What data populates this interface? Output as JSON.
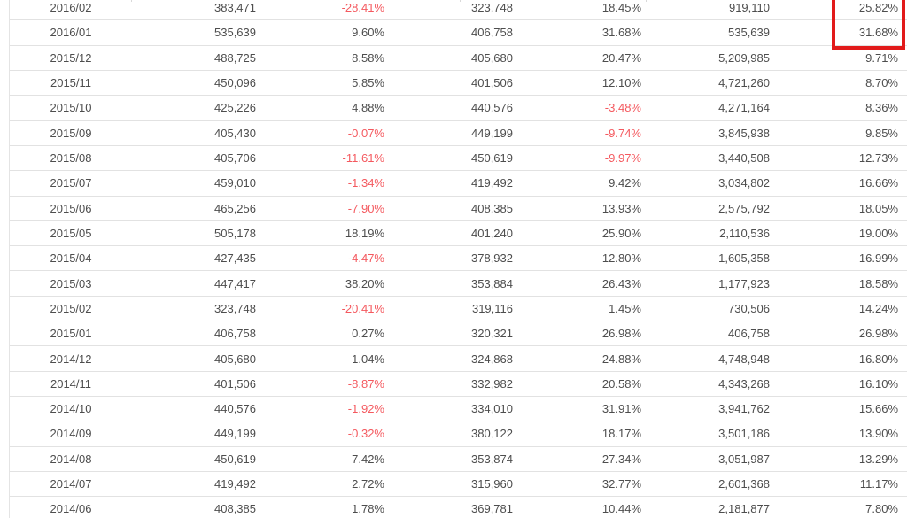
{
  "chart_data": {
    "type": "table",
    "columns_visible_headers": [],
    "rows": [
      [
        "2016/02",
        "383,471",
        "-28.41%",
        "323,748",
        "18.45%",
        "919,110",
        "25.82%"
      ],
      [
        "2016/01",
        "535,639",
        "9.60%",
        "406,758",
        "31.68%",
        "535,639",
        "31.68%"
      ],
      [
        "2015/12",
        "488,725",
        "8.58%",
        "405,680",
        "20.47%",
        "5,209,985",
        "9.71%"
      ],
      [
        "2015/11",
        "450,096",
        "5.85%",
        "401,506",
        "12.10%",
        "4,721,260",
        "8.70%"
      ],
      [
        "2015/10",
        "425,226",
        "4.88%",
        "440,576",
        "-3.48%",
        "4,271,164",
        "8.36%"
      ],
      [
        "2015/09",
        "405,430",
        "-0.07%",
        "449,199",
        "-9.74%",
        "3,845,938",
        "9.85%"
      ],
      [
        "2015/08",
        "405,706",
        "-11.61%",
        "450,619",
        "-9.97%",
        "3,440,508",
        "12.73%"
      ],
      [
        "2015/07",
        "459,010",
        "-1.34%",
        "419,492",
        "9.42%",
        "3,034,802",
        "16.66%"
      ],
      [
        "2015/06",
        "465,256",
        "-7.90%",
        "408,385",
        "13.93%",
        "2,575,792",
        "18.05%"
      ],
      [
        "2015/05",
        "505,178",
        "18.19%",
        "401,240",
        "25.90%",
        "2,110,536",
        "19.00%"
      ],
      [
        "2015/04",
        "427,435",
        "-4.47%",
        "378,932",
        "12.80%",
        "1,605,358",
        "16.99%"
      ],
      [
        "2015/03",
        "447,417",
        "38.20%",
        "353,884",
        "26.43%",
        "1,177,923",
        "18.58%"
      ],
      [
        "2015/02",
        "323,748",
        "-20.41%",
        "319,116",
        "1.45%",
        "730,506",
        "14.24%"
      ],
      [
        "2015/01",
        "406,758",
        "0.27%",
        "320,321",
        "26.98%",
        "406,758",
        "26.98%"
      ],
      [
        "2014/12",
        "405,680",
        "1.04%",
        "324,868",
        "24.88%",
        "4,748,948",
        "16.80%"
      ],
      [
        "2014/11",
        "401,506",
        "-8.87%",
        "332,982",
        "20.58%",
        "4,343,268",
        "16.10%"
      ],
      [
        "2014/10",
        "440,576",
        "-1.92%",
        "334,010",
        "31.91%",
        "3,941,762",
        "15.66%"
      ],
      [
        "2014/09",
        "449,199",
        "-0.32%",
        "380,122",
        "18.17%",
        "3,501,186",
        "13.90%"
      ],
      [
        "2014/08",
        "450,619",
        "7.42%",
        "353,874",
        "27.34%",
        "3,051,987",
        "13.29%"
      ],
      [
        "2014/07",
        "419,492",
        "2.72%",
        "315,960",
        "32.77%",
        "2,601,368",
        "11.17%"
      ],
      [
        "2014/06",
        "408,385",
        "1.78%",
        "369,781",
        "10.44%",
        "2,181,877",
        "7.80%"
      ]
    ],
    "highlight": {
      "row_indexes": [
        0,
        1
      ],
      "column_index": 6,
      "highlighted_values": [
        "25.82%",
        "31.68%"
      ],
      "color": "#e21a1a"
    },
    "colors": {
      "text": "#4d4d4d",
      "negative_value_text": "#f4595f",
      "row_separator": "#e2e2e2",
      "highlight_border": "#e21a1a"
    },
    "layout": {
      "grid": "horizontal row separators only",
      "negative_values_shown_in_red": true
    }
  }
}
